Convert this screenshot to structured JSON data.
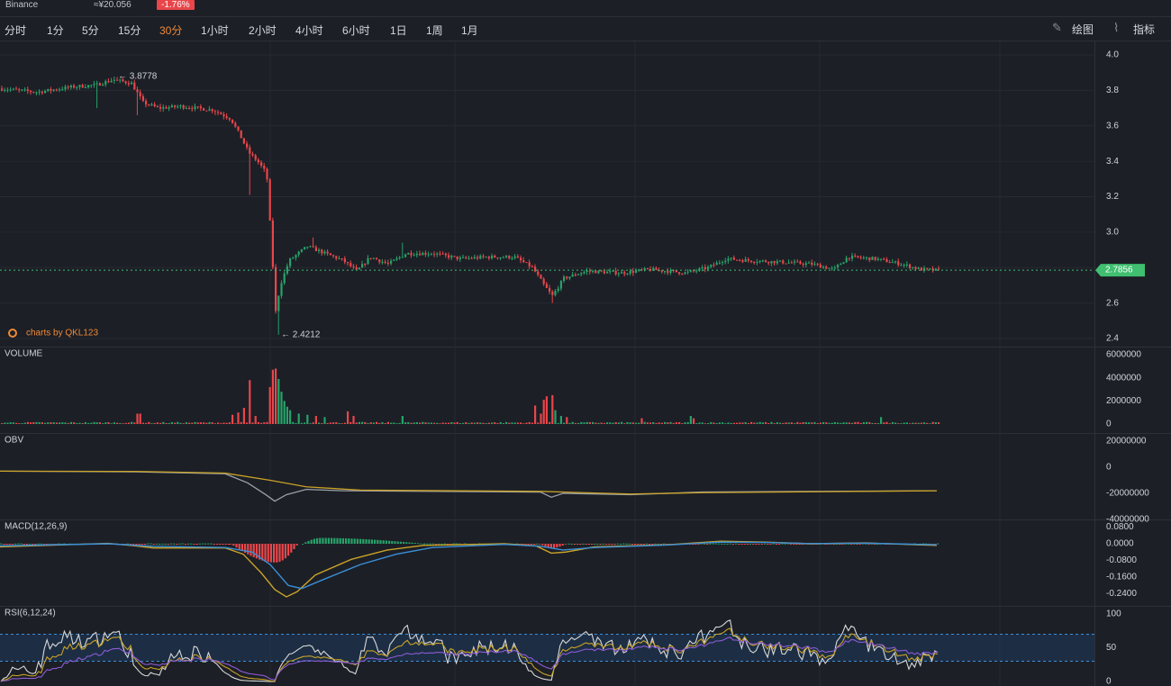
{
  "header": {
    "exchange": "Binance",
    "price_cny": "≈¥20.056",
    "change": "-1.76%"
  },
  "toolbar": {
    "periods": [
      "分时",
      "1分",
      "5分",
      "15分",
      "30分",
      "1小时",
      "2小时",
      "4小时",
      "6小时",
      "1日",
      "1周",
      "1月"
    ],
    "active_period": "30分",
    "draw_label": "绘图",
    "indicator_label": "指标",
    "draw_icon": "pencil-icon",
    "indicator_icon": "line-chart-icon"
  },
  "colors": {
    "up": "#26a269",
    "down": "#e9464a",
    "accent": "#f08a37",
    "price_tag": "#3fbf6f",
    "ma_yellow": "#c9a227",
    "line_blue": "#3b8fd8",
    "line_white": "#9aa0a8",
    "line_purple": "#8c5bd6"
  },
  "watermark": "charts by QKL123",
  "chart_data": [
    {
      "type": "candlestick",
      "name": "price",
      "y_ticks": [
        "4.0",
        "3.8",
        "3.6",
        "3.4",
        "3.2",
        "3.0",
        "2.8",
        "2.6",
        "2.4"
      ],
      "ylim": [
        2.4,
        4.0
      ],
      "last_price": "2.7856",
      "annotations": [
        {
          "label": "3.8778",
          "value": 3.8778,
          "position": "local max"
        },
        {
          "label": "2.4212",
          "value": 2.4212,
          "position": "local min"
        }
      ],
      "path_anchors": [
        [
          0,
          3.81
        ],
        [
          40,
          3.79
        ],
        [
          80,
          3.82
        ],
        [
          105,
          3.83
        ],
        [
          125,
          3.86
        ],
        [
          145,
          3.84
        ],
        [
          158,
          3.73
        ],
        [
          175,
          3.7
        ],
        [
          200,
          3.71
        ],
        [
          235,
          3.69
        ],
        [
          255,
          3.64
        ],
        [
          265,
          3.55
        ],
        [
          275,
          3.45
        ],
        [
          285,
          3.4
        ],
        [
          295,
          3.33
        ],
        [
          300,
          2.95
        ],
        [
          305,
          2.55
        ],
        [
          310,
          2.7
        ],
        [
          320,
          2.84
        ],
        [
          340,
          2.92
        ],
        [
          360,
          2.88
        ],
        [
          380,
          2.84
        ],
        [
          395,
          2.78
        ],
        [
          410,
          2.86
        ],
        [
          430,
          2.82
        ],
        [
          450,
          2.88
        ],
        [
          480,
          2.88
        ],
        [
          510,
          2.85
        ],
        [
          540,
          2.86
        ],
        [
          570,
          2.86
        ],
        [
          590,
          2.8
        ],
        [
          603,
          2.7
        ],
        [
          612,
          2.64
        ],
        [
          625,
          2.74
        ],
        [
          650,
          2.78
        ],
        [
          690,
          2.77
        ],
        [
          720,
          2.79
        ],
        [
          760,
          2.77
        ],
        [
          785,
          2.8
        ],
        [
          805,
          2.85
        ],
        [
          830,
          2.84
        ],
        [
          870,
          2.83
        ],
        [
          900,
          2.82
        ],
        [
          925,
          2.79
        ],
        [
          940,
          2.86
        ],
        [
          970,
          2.85
        ],
        [
          1000,
          2.82
        ],
        [
          1020,
          2.79
        ],
        [
          1040,
          2.785
        ]
      ]
    },
    {
      "type": "bar",
      "name": "VOLUME",
      "y_ticks": [
        "6000000",
        "4000000",
        "2000000",
        "0"
      ],
      "ylim": [
        0,
        6000000
      ],
      "spikes": [
        {
          "x": 153,
          "value": 900000
        },
        {
          "x": 258,
          "value": 800000
        },
        {
          "x": 263,
          "value": 1000000
        },
        {
          "x": 270,
          "value": 1400000
        },
        {
          "x": 275,
          "value": 3800000
        },
        {
          "x": 282,
          "value": 700000
        },
        {
          "x": 298,
          "value": 3200000
        },
        {
          "x": 301,
          "value": 4700000
        },
        {
          "x": 304,
          "value": 4800000
        },
        {
          "x": 307,
          "value": 3900000
        },
        {
          "x": 310,
          "value": 2800000
        },
        {
          "x": 314,
          "value": 2000000
        },
        {
          "x": 318,
          "value": 1500000
        },
        {
          "x": 322,
          "value": 1200000
        },
        {
          "x": 330,
          "value": 900000
        },
        {
          "x": 340,
          "value": 800000
        },
        {
          "x": 350,
          "value": 700000
        },
        {
          "x": 360,
          "value": 600000
        },
        {
          "x": 385,
          "value": 1100000
        },
        {
          "x": 392,
          "value": 700000
        },
        {
          "x": 445,
          "value": 700000
        },
        {
          "x": 593,
          "value": 1600000
        },
        {
          "x": 598,
          "value": 900000
        },
        {
          "x": 603,
          "value": 2100000
        },
        {
          "x": 607,
          "value": 2400000
        },
        {
          "x": 611,
          "value": 2500000
        },
        {
          "x": 615,
          "value": 1200000
        },
        {
          "x": 622,
          "value": 700000
        },
        {
          "x": 627,
          "value": 600000
        },
        {
          "x": 712,
          "value": 500000
        },
        {
          "x": 765,
          "value": 700000
        },
        {
          "x": 770,
          "value": 500000
        },
        {
          "x": 977,
          "value": 600000
        }
      ]
    },
    {
      "type": "line",
      "name": "OBV",
      "y_ticks": [
        "20000000",
        "0",
        "-20000000",
        "-40000000"
      ],
      "ylim": [
        -40000000,
        20000000
      ],
      "series": [
        {
          "color": "#9aa0a8",
          "points": [
            [
              0,
              -3000000
            ],
            [
              150,
              -3500000
            ],
            [
              250,
              -5000000
            ],
            [
              275,
              -12000000
            ],
            [
              295,
              -21000000
            ],
            [
              305,
              -26000000
            ],
            [
              318,
              -21000000
            ],
            [
              340,
              -17000000
            ],
            [
              380,
              -18000000
            ],
            [
              600,
              -19000000
            ],
            [
              612,
              -23000000
            ],
            [
              625,
              -20000000
            ],
            [
              700,
              -21000000
            ],
            [
              780,
              -19000000
            ],
            [
              1040,
              -18000000
            ]
          ]
        },
        {
          "color": "#c9a227",
          "points": [
            [
              0,
              -3000000
            ],
            [
              150,
              -3200000
            ],
            [
              250,
              -4500000
            ],
            [
              300,
              -10000000
            ],
            [
              340,
              -15000000
            ],
            [
              400,
              -17500000
            ],
            [
              600,
              -18500000
            ],
            [
              700,
              -20500000
            ],
            [
              780,
              -19500000
            ],
            [
              1040,
              -18000000
            ]
          ]
        }
      ]
    },
    {
      "type": "bar+line",
      "name": "MACD(12,26,9)",
      "y_ticks": [
        "0.0800",
        "0.0000",
        "-0.0800",
        "-0.1600",
        "-0.2400"
      ],
      "ylim": [
        -0.28,
        0.1
      ],
      "lines": [
        {
          "color": "#c9a227",
          "points": [
            [
              0,
              -0.015
            ],
            [
              120,
              0.002
            ],
            [
              150,
              -0.01
            ],
            [
              170,
              -0.02
            ],
            [
              250,
              -0.02
            ],
            [
              270,
              -0.05
            ],
            [
              290,
              -0.14
            ],
            [
              305,
              -0.22
            ],
            [
              318,
              -0.255
            ],
            [
              330,
              -0.23
            ],
            [
              350,
              -0.15
            ],
            [
              390,
              -0.075
            ],
            [
              430,
              -0.03
            ],
            [
              470,
              -0.008
            ],
            [
              560,
              0.0
            ],
            [
              595,
              -0.01
            ],
            [
              612,
              -0.045
            ],
            [
              628,
              -0.04
            ],
            [
              660,
              -0.015
            ],
            [
              740,
              -0.005
            ],
            [
              800,
              0.012
            ],
            [
              850,
              0.008
            ],
            [
              900,
              0.0
            ],
            [
              960,
              0.004
            ],
            [
              1040,
              -0.008
            ]
          ]
        },
        {
          "color": "#3b8fd8",
          "points": [
            [
              0,
              -0.01
            ],
            [
              120,
              0.0
            ],
            [
              170,
              -0.012
            ],
            [
              250,
              -0.018
            ],
            [
              280,
              -0.04
            ],
            [
              300,
              -0.1
            ],
            [
              320,
              -0.2
            ],
            [
              335,
              -0.215
            ],
            [
              360,
              -0.17
            ],
            [
              400,
              -0.1
            ],
            [
              440,
              -0.05
            ],
            [
              480,
              -0.018
            ],
            [
              560,
              -0.003
            ],
            [
              600,
              -0.012
            ],
            [
              625,
              -0.03
            ],
            [
              660,
              -0.018
            ],
            [
              740,
              -0.006
            ],
            [
              800,
              0.008
            ],
            [
              850,
              0.006
            ],
            [
              900,
              0.001
            ],
            [
              960,
              0.003
            ],
            [
              1040,
              -0.005
            ]
          ]
        }
      ],
      "histogram": {
        "neg_range": [
          255,
          330
        ],
        "neg_peak": [
          305,
          -0.09
        ],
        "pos_range": [
          335,
          470
        ],
        "pos_peak": [
          355,
          0.028
        ],
        "neg2_range": [
          598,
          628
        ],
        "neg2_peak": [
          612,
          -0.02
        ]
      }
    },
    {
      "type": "line",
      "name": "RSI(6,12,24)",
      "y_ticks": [
        "100",
        "50",
        "0"
      ],
      "ylim": [
        0,
        100
      ],
      "band": [
        30,
        70
      ],
      "series": [
        {
          "color": "#d8d8d8",
          "period": 6
        },
        {
          "color": "#c9a227",
          "period": 12
        },
        {
          "color": "#8c5bd6",
          "period": 24
        }
      ]
    }
  ]
}
